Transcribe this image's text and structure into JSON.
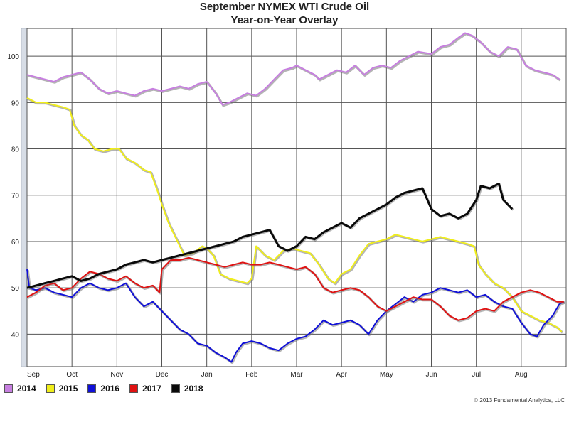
{
  "chart_data": {
    "type": "line",
    "title": "September NYMEX WTI Crude Oil",
    "subtitle": "Year-on-Year Overlay",
    "xlabel": "",
    "ylabel": "",
    "ylim": [
      33,
      106
    ],
    "yticks": [
      40,
      50,
      60,
      70,
      80,
      90,
      100
    ],
    "xticks": [
      "Sep",
      "Oct",
      "Nov",
      "Dec",
      "Jan",
      "Feb",
      "Mar",
      "Apr",
      "May",
      "Jun",
      "Jul",
      "Aug"
    ],
    "grid": true,
    "legend_position": "bottom-left",
    "series": [
      {
        "name": "2014",
        "color": "#c77fe0",
        "values": [
          [
            0,
            96
          ],
          [
            0.2,
            95.5
          ],
          [
            0.4,
            95
          ],
          [
            0.6,
            94.5
          ],
          [
            0.8,
            95.5
          ],
          [
            1,
            96
          ],
          [
            1.2,
            96.5
          ],
          [
            1.4,
            95
          ],
          [
            1.6,
            93
          ],
          [
            1.8,
            92
          ],
          [
            2,
            92.5
          ],
          [
            2.2,
            92
          ],
          [
            2.4,
            91.5
          ],
          [
            2.6,
            92.5
          ],
          [
            2.8,
            93
          ],
          [
            3,
            92.5
          ],
          [
            3.2,
            93
          ],
          [
            3.4,
            93.5
          ],
          [
            3.6,
            93
          ],
          [
            3.8,
            94
          ],
          [
            4,
            94.5
          ],
          [
            4.2,
            92
          ],
          [
            4.35,
            89.5
          ],
          [
            4.5,
            90
          ],
          [
            4.7,
            91
          ],
          [
            4.9,
            92
          ],
          [
            5.1,
            91.5
          ],
          [
            5.3,
            93
          ],
          [
            5.5,
            95
          ],
          [
            5.7,
            97
          ],
          [
            5.9,
            97.5
          ],
          [
            6,
            98
          ],
          [
            6.2,
            97
          ],
          [
            6.4,
            96
          ],
          [
            6.5,
            95
          ],
          [
            6.7,
            96
          ],
          [
            6.9,
            97
          ],
          [
            7.1,
            96.5
          ],
          [
            7.3,
            98
          ],
          [
            7.5,
            96
          ],
          [
            7.7,
            97.5
          ],
          [
            7.9,
            98
          ],
          [
            8.1,
            97.5
          ],
          [
            8.3,
            99
          ],
          [
            8.5,
            100
          ],
          [
            8.7,
            101
          ],
          [
            9,
            100.5
          ],
          [
            9.2,
            102
          ],
          [
            9.4,
            102.5
          ],
          [
            9.6,
            104
          ],
          [
            9.75,
            105
          ],
          [
            9.9,
            104.5
          ],
          [
            10.1,
            103
          ],
          [
            10.3,
            101
          ],
          [
            10.5,
            100
          ],
          [
            10.7,
            102
          ],
          [
            10.9,
            101.5
          ],
          [
            11.1,
            98
          ],
          [
            11.3,
            97
          ],
          [
            11.5,
            96.5
          ],
          [
            11.7,
            96
          ],
          [
            11.85,
            95
          ]
        ]
      },
      {
        "name": "2015",
        "color": "#f0ee1a",
        "values": [
          [
            0,
            91
          ],
          [
            0.2,
            90
          ],
          [
            0.4,
            90
          ],
          [
            0.6,
            89.5
          ],
          [
            0.8,
            89
          ],
          [
            0.95,
            88.5
          ],
          [
            1.05,
            85
          ],
          [
            1.2,
            83
          ],
          [
            1.35,
            82
          ],
          [
            1.5,
            80
          ],
          [
            1.7,
            79.5
          ],
          [
            1.9,
            80
          ],
          [
            2.05,
            80
          ],
          [
            2.2,
            78
          ],
          [
            2.4,
            77
          ],
          [
            2.6,
            75.5
          ],
          [
            2.75,
            75
          ],
          [
            2.9,
            71
          ],
          [
            3,
            68
          ],
          [
            3.15,
            64
          ],
          [
            3.3,
            61
          ],
          [
            3.5,
            57
          ],
          [
            3.7,
            57.5
          ],
          [
            3.9,
            59
          ],
          [
            4,
            58.5
          ],
          [
            4.15,
            57
          ],
          [
            4.3,
            53
          ],
          [
            4.5,
            52
          ],
          [
            4.7,
            51.5
          ],
          [
            4.9,
            51
          ],
          [
            5,
            52
          ],
          [
            5.1,
            59
          ],
          [
            5.3,
            57
          ],
          [
            5.5,
            56
          ],
          [
            5.7,
            58
          ],
          [
            5.9,
            58.5
          ],
          [
            6.1,
            58
          ],
          [
            6.3,
            57.5
          ],
          [
            6.5,
            55
          ],
          [
            6.7,
            52
          ],
          [
            6.85,
            51
          ],
          [
            7,
            53
          ],
          [
            7.2,
            54
          ],
          [
            7.4,
            57
          ],
          [
            7.6,
            59.5
          ],
          [
            7.8,
            60
          ],
          [
            8,
            60.5
          ],
          [
            8.2,
            61.5
          ],
          [
            8.4,
            61
          ],
          [
            8.6,
            60.5
          ],
          [
            8.8,
            60
          ],
          [
            9,
            60.5
          ],
          [
            9.2,
            61
          ],
          [
            9.4,
            60.5
          ],
          [
            9.6,
            60
          ],
          [
            9.8,
            59.5
          ],
          [
            9.95,
            59
          ],
          [
            10.05,
            55
          ],
          [
            10.2,
            53
          ],
          [
            10.4,
            51
          ],
          [
            10.6,
            50
          ],
          [
            10.8,
            48
          ],
          [
            11,
            45
          ],
          [
            11.2,
            44
          ],
          [
            11.4,
            43
          ],
          [
            11.6,
            42.5
          ],
          [
            11.8,
            41.5
          ],
          [
            11.9,
            40.5
          ]
        ]
      },
      {
        "name": "2016",
        "color": "#1010d8",
        "values": [
          [
            0,
            54
          ],
          [
            0.05,
            50
          ],
          [
            0.2,
            49.5
          ],
          [
            0.4,
            50
          ],
          [
            0.6,
            49
          ],
          [
            0.8,
            48.5
          ],
          [
            1,
            48
          ],
          [
            1.2,
            50
          ],
          [
            1.4,
            51
          ],
          [
            1.6,
            50
          ],
          [
            1.8,
            49.5
          ],
          [
            2,
            50
          ],
          [
            2.2,
            51
          ],
          [
            2.4,
            48
          ],
          [
            2.6,
            46
          ],
          [
            2.8,
            47
          ],
          [
            3,
            45
          ],
          [
            3.2,
            43
          ],
          [
            3.4,
            41
          ],
          [
            3.6,
            40
          ],
          [
            3.8,
            38
          ],
          [
            4,
            37.5
          ],
          [
            4.2,
            36
          ],
          [
            4.4,
            35
          ],
          [
            4.55,
            34
          ],
          [
            4.65,
            36
          ],
          [
            4.8,
            38
          ],
          [
            5,
            38.5
          ],
          [
            5.2,
            38
          ],
          [
            5.4,
            37
          ],
          [
            5.6,
            36.5
          ],
          [
            5.8,
            38
          ],
          [
            6,
            39
          ],
          [
            6.2,
            39.5
          ],
          [
            6.4,
            41
          ],
          [
            6.6,
            43
          ],
          [
            6.8,
            42
          ],
          [
            7,
            42.5
          ],
          [
            7.2,
            43
          ],
          [
            7.4,
            42
          ],
          [
            7.6,
            40
          ],
          [
            7.8,
            43
          ],
          [
            8,
            45
          ],
          [
            8.2,
            46.5
          ],
          [
            8.4,
            48
          ],
          [
            8.6,
            47
          ],
          [
            8.8,
            48.5
          ],
          [
            9,
            49
          ],
          [
            9.2,
            50
          ],
          [
            9.4,
            49.5
          ],
          [
            9.6,
            49
          ],
          [
            9.8,
            49.5
          ],
          [
            10,
            48
          ],
          [
            10.2,
            48.5
          ],
          [
            10.4,
            47
          ],
          [
            10.6,
            46
          ],
          [
            10.8,
            45.5
          ],
          [
            11,
            42.5
          ],
          [
            11.2,
            40
          ],
          [
            11.35,
            39.5
          ],
          [
            11.5,
            42
          ],
          [
            11.7,
            44
          ],
          [
            11.85,
            46.5
          ],
          [
            11.95,
            47
          ]
        ]
      },
      {
        "name": "2017",
        "color": "#e01212",
        "values": [
          [
            0,
            48
          ],
          [
            0.2,
            49
          ],
          [
            0.4,
            50.5
          ],
          [
            0.6,
            51
          ],
          [
            0.8,
            49.5
          ],
          [
            1,
            50
          ],
          [
            1.2,
            52
          ],
          [
            1.4,
            53.5
          ],
          [
            1.6,
            53
          ],
          [
            1.8,
            52
          ],
          [
            2,
            51.5
          ],
          [
            2.2,
            52.5
          ],
          [
            2.4,
            51
          ],
          [
            2.6,
            50
          ],
          [
            2.8,
            50.5
          ],
          [
            2.95,
            49
          ],
          [
            3,
            54
          ],
          [
            3.2,
            56
          ],
          [
            3.4,
            56
          ],
          [
            3.6,
            56.5
          ],
          [
            3.8,
            56
          ],
          [
            4,
            55.5
          ],
          [
            4.2,
            55
          ],
          [
            4.4,
            54.5
          ],
          [
            4.6,
            55
          ],
          [
            4.8,
            55.5
          ],
          [
            5,
            55
          ],
          [
            5.2,
            55
          ],
          [
            5.4,
            55.5
          ],
          [
            5.6,
            55
          ],
          [
            5.8,
            54.5
          ],
          [
            6,
            54
          ],
          [
            6.2,
            54.5
          ],
          [
            6.4,
            53
          ],
          [
            6.6,
            50
          ],
          [
            6.8,
            49
          ],
          [
            7,
            49.5
          ],
          [
            7.2,
            50
          ],
          [
            7.4,
            49.5
          ],
          [
            7.6,
            48
          ],
          [
            7.8,
            46
          ],
          [
            8,
            45
          ],
          [
            8.2,
            46
          ],
          [
            8.4,
            47
          ],
          [
            8.6,
            48
          ],
          [
            8.8,
            47.5
          ],
          [
            9,
            47.5
          ],
          [
            9.2,
            46
          ],
          [
            9.4,
            44
          ],
          [
            9.6,
            43
          ],
          [
            9.8,
            43.5
          ],
          [
            10,
            45
          ],
          [
            10.2,
            45.5
          ],
          [
            10.4,
            45
          ],
          [
            10.6,
            47
          ],
          [
            10.8,
            48
          ],
          [
            11,
            49
          ],
          [
            11.2,
            49.5
          ],
          [
            11.4,
            49
          ],
          [
            11.6,
            48
          ],
          [
            11.8,
            47
          ],
          [
            11.95,
            47
          ]
        ]
      },
      {
        "name": "2018",
        "color": "#0a0a0a",
        "values": [
          [
            0,
            50
          ],
          [
            0.2,
            50.5
          ],
          [
            0.4,
            51
          ],
          [
            0.6,
            51.5
          ],
          [
            0.8,
            52
          ],
          [
            1,
            52.5
          ],
          [
            1.2,
            51.5
          ],
          [
            1.4,
            52
          ],
          [
            1.6,
            53
          ],
          [
            1.8,
            53.5
          ],
          [
            2,
            54
          ],
          [
            2.2,
            55
          ],
          [
            2.4,
            55.5
          ],
          [
            2.6,
            56
          ],
          [
            2.8,
            55.5
          ],
          [
            3,
            56
          ],
          [
            3.2,
            56.5
          ],
          [
            3.4,
            57
          ],
          [
            3.6,
            57.5
          ],
          [
            3.8,
            58
          ],
          [
            4,
            58.5
          ],
          [
            4.2,
            59
          ],
          [
            4.4,
            59.5
          ],
          [
            4.6,
            60
          ],
          [
            4.8,
            61
          ],
          [
            5,
            61.5
          ],
          [
            5.2,
            62
          ],
          [
            5.4,
            62.5
          ],
          [
            5.6,
            59
          ],
          [
            5.8,
            58
          ],
          [
            6,
            59
          ],
          [
            6.2,
            61
          ],
          [
            6.4,
            60.5
          ],
          [
            6.6,
            62
          ],
          [
            6.8,
            63
          ],
          [
            7,
            64
          ],
          [
            7.2,
            63
          ],
          [
            7.4,
            65
          ],
          [
            7.6,
            66
          ],
          [
            7.8,
            67
          ],
          [
            8,
            68
          ],
          [
            8.2,
            69.5
          ],
          [
            8.4,
            70.5
          ],
          [
            8.6,
            71
          ],
          [
            8.8,
            71.5
          ],
          [
            9,
            67
          ],
          [
            9.2,
            65.5
          ],
          [
            9.4,
            66
          ],
          [
            9.6,
            65
          ],
          [
            9.8,
            66
          ],
          [
            10,
            69
          ],
          [
            10.1,
            72
          ],
          [
            10.3,
            71.5
          ],
          [
            10.5,
            72.5
          ],
          [
            10.6,
            69
          ],
          [
            10.7,
            68
          ],
          [
            10.8,
            67
          ]
        ]
      }
    ]
  },
  "legend": [
    {
      "label": "2014",
      "color": "#c77fe0"
    },
    {
      "label": "2015",
      "color": "#f0ee1a"
    },
    {
      "label": "2016",
      "color": "#1010d8"
    },
    {
      "label": "2017",
      "color": "#e01212"
    },
    {
      "label": "2018",
      "color": "#0a0a0a"
    }
  ],
  "copyright": "© 2013 Fundamental Analytics, LLC"
}
